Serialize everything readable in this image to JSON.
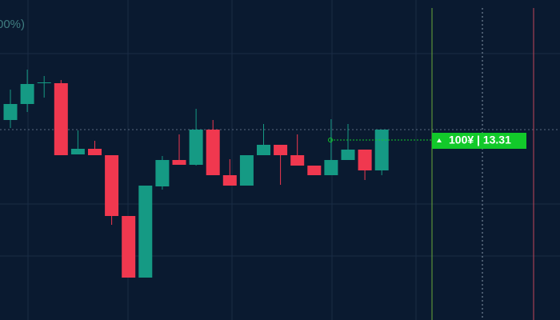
{
  "chart_data": {
    "type": "candlestick",
    "title": "00%)",
    "categories": [
      null,
      null,
      null,
      null,
      null,
      null,
      null,
      null,
      null,
      null,
      null,
      null,
      null,
      null,
      null,
      null,
      null,
      null,
      null,
      null,
      null,
      null,
      null
    ],
    "open": [
      13.56,
      13.76,
      14.03,
      14.02,
      13.13,
      13.2,
      13.12,
      12.36,
      11.59,
      12.73,
      13.06,
      13.0,
      13.44,
      12.87,
      12.74,
      13.12,
      13.25,
      13.12,
      12.99,
      12.87,
      13.06,
      13.19,
      12.93
    ],
    "high": [
      13.94,
      14.19,
      14.11,
      14.06,
      13.43,
      13.3,
      13.12,
      12.36,
      12.74,
      13.11,
      13.38,
      13.7,
      13.56,
      13.07,
      13.12,
      13.51,
      13.25,
      13.38,
      12.99,
      13.57,
      13.51,
      13.19,
      13.44
    ],
    "low": [
      13.46,
      13.66,
      13.84,
      13.12,
      13.13,
      13.12,
      12.25,
      11.59,
      11.59,
      12.69,
      13.0,
      12.99,
      12.87,
      12.74,
      12.74,
      13.12,
      12.75,
      12.99,
      12.87,
      12.87,
      13.06,
      12.81,
      12.87
    ],
    "close": [
      13.76,
      14.01,
      14.03,
      13.12,
      13.2,
      13.12,
      12.36,
      11.59,
      12.74,
      13.06,
      13.0,
      13.44,
      12.87,
      12.74,
      13.12,
      13.25,
      13.12,
      12.99,
      12.87,
      13.06,
      13.19,
      12.93,
      13.44
    ],
    "up_color": "#159a84",
    "down_color": "#f0384f",
    "ylim": [
      11.06,
      15.06
    ],
    "position": {
      "label": "100¥ | 13.31",
      "price": 13.31,
      "color": "#12c92a"
    }
  }
}
